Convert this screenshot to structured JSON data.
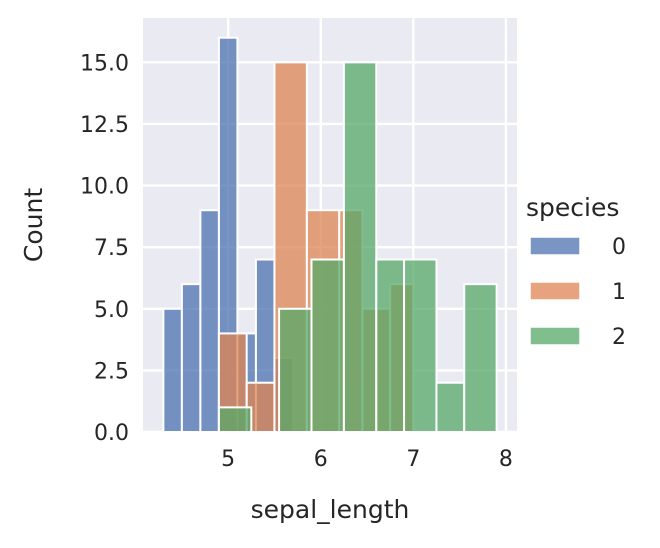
{
  "chart_data": {
    "type": "histogram",
    "title": "",
    "xlabel": "sepal_length",
    "ylabel": "Count",
    "xlim": [
      4.08,
      8.12
    ],
    "ylim": [
      0,
      16.8
    ],
    "x_ticks": [
      5,
      6,
      7,
      8
    ],
    "x_tick_labels": [
      "5",
      "6",
      "7",
      "8"
    ],
    "y_ticks": [
      0,
      2.5,
      5,
      7.5,
      10,
      12.5,
      15
    ],
    "y_tick_labels": [
      "0.0",
      "2.5",
      "5.0",
      "7.5",
      "10.0",
      "12.5",
      "15.0"
    ],
    "grid": true,
    "bar_alpha": 0.75,
    "legend": {
      "title": "species",
      "placement": "right",
      "entries": [
        "0",
        "1",
        "2"
      ]
    },
    "series": [
      {
        "name": "0",
        "color": "#4c72b0",
        "bins": [
          {
            "x0": 4.3,
            "x1": 4.5,
            "count": 5
          },
          {
            "x0": 4.5,
            "x1": 4.7,
            "count": 6
          },
          {
            "x0": 4.7,
            "x1": 4.9,
            "count": 9
          },
          {
            "x0": 4.9,
            "x1": 5.1,
            "count": 16
          },
          {
            "x0": 5.1,
            "x1": 5.3,
            "count": 4
          },
          {
            "x0": 5.3,
            "x1": 5.5,
            "count": 7
          },
          {
            "x0": 5.5,
            "x1": 5.7,
            "count": 3
          }
        ]
      },
      {
        "name": "1",
        "color": "#dd8452",
        "bins": [
          {
            "x0": 4.9,
            "x1": 5.2,
            "count": 4
          },
          {
            "x0": 5.2,
            "x1": 5.5,
            "count": 2
          },
          {
            "x0": 5.5,
            "x1": 5.85,
            "count": 15
          },
          {
            "x0": 5.85,
            "x1": 6.2,
            "count": 9
          },
          {
            "x0": 6.2,
            "x1": 6.45,
            "count": 9
          },
          {
            "x0": 6.45,
            "x1": 6.75,
            "count": 5
          },
          {
            "x0": 6.75,
            "x1": 7.0,
            "count": 6
          }
        ]
      },
      {
        "name": "2",
        "color": "#55a868",
        "bins": [
          {
            "x0": 4.9,
            "x1": 5.25,
            "count": 1
          },
          {
            "x0": 5.55,
            "x1": 5.9,
            "count": 5
          },
          {
            "x0": 5.9,
            "x1": 6.25,
            "count": 7
          },
          {
            "x0": 6.25,
            "x1": 6.6,
            "count": 15
          },
          {
            "x0": 6.6,
            "x1": 6.9,
            "count": 7
          },
          {
            "x0": 6.9,
            "x1": 7.25,
            "count": 7
          },
          {
            "x0": 7.25,
            "x1": 7.55,
            "count": 2
          },
          {
            "x0": 7.55,
            "x1": 7.9,
            "count": 6
          }
        ]
      }
    ]
  }
}
